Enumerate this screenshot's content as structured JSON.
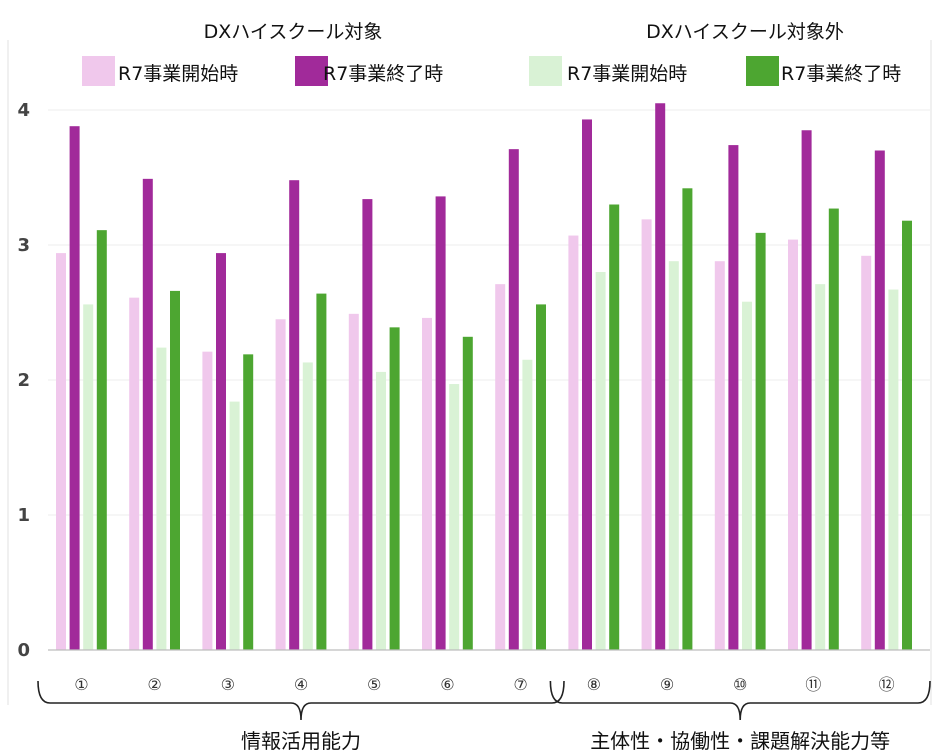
{
  "chart_data": {
    "type": "bar",
    "categories": [
      "①",
      "②",
      "③",
      "④",
      "⑤",
      "⑥",
      "⑦",
      "⑧",
      "⑨",
      "⑩",
      "⑪",
      "⑫"
    ],
    "series": [
      {
        "name": "R7事業開始時",
        "group": "DXハイスクール対象",
        "color": "#f0c8ec",
        "values": [
          2.94,
          2.61,
          2.21,
          2.45,
          2.49,
          2.46,
          2.71,
          3.07,
          3.19,
          2.88,
          3.04,
          2.92
        ]
      },
      {
        "name": "R7事業終了時",
        "group": "DXハイスクール対象",
        "color": "#a12a9a",
        "values": [
          3.88,
          3.49,
          2.94,
          3.48,
          3.34,
          3.36,
          3.71,
          3.93,
          4.05,
          3.74,
          3.85,
          3.7
        ]
      },
      {
        "name": "R7事業開始時",
        "group": "DXハイスクール対象外",
        "color": "#d9f2d5",
        "values": [
          2.56,
          2.24,
          1.84,
          2.13,
          2.06,
          1.97,
          2.15,
          2.8,
          2.88,
          2.58,
          2.71,
          2.67
        ]
      },
      {
        "name": "R7事業終了時",
        "group": "DXハイスクール対象外",
        "color": "#4da631",
        "values": [
          3.11,
          2.66,
          2.19,
          2.64,
          2.39,
          2.32,
          2.56,
          3.3,
          3.42,
          3.09,
          3.27,
          3.18
        ]
      }
    ],
    "ylim": [
      0,
      4.2
    ],
    "yticks": [
      "0",
      "1",
      "2",
      "3",
      "4"
    ],
    "grid": true,
    "legend_groups": [
      {
        "title": "DXハイスクール対象",
        "items": [
          {
            "label": "R7事業開始時",
            "color": "#f0c8ec"
          },
          {
            "label": "R7事業終了時",
            "color": "#a12a9a"
          }
        ]
      },
      {
        "title": "DXハイスクール対象外",
        "items": [
          {
            "label": "R7事業開始時",
            "color": "#d9f2d5"
          },
          {
            "label": "R7事業終了時",
            "color": "#4da631"
          }
        ]
      }
    ],
    "category_groups": [
      {
        "label": "情報活用能力",
        "range": [
          0,
          6
        ]
      },
      {
        "label": "主体性・協働性・課題解決能力等",
        "range": [
          7,
          11
        ]
      }
    ]
  }
}
